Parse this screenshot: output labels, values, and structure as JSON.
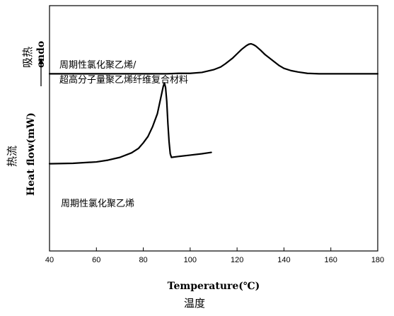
{
  "chart_data": {
    "type": "line",
    "xlabel": "Temperature(℃)",
    "xlabel_cn": "温度",
    "ylabel": "Heat flow(mW)",
    "ylabel_cn": "热流",
    "endo_label_cn": "吸热",
    "endo_label": "endo",
    "xlim": [
      40,
      180
    ],
    "xticks": [
      40,
      60,
      80,
      100,
      120,
      140,
      160,
      180
    ],
    "y_ticks_shown": false,
    "grid": false,
    "series": [
      {
        "name": "周期性氯化聚乙烯/超高分子量聚乙烯纤维复合材料",
        "label_lines": [
          "周期性氯化聚乙烯/",
          "超高分子量聚乙烯纤维复合材料"
        ],
        "color": "#000000",
        "x": [
          40,
          80,
          90,
          95,
          100,
          105,
          110,
          113,
          115,
          118,
          120,
          122,
          124,
          125,
          126,
          127,
          128,
          130,
          132,
          135,
          138,
          140,
          143,
          146,
          150,
          155,
          160,
          170,
          180
        ],
        "y": [
          0.0,
          0.0,
          0.0,
          0.05,
          0.05,
          0.15,
          0.45,
          0.75,
          1.1,
          1.7,
          2.2,
          2.7,
          3.1,
          3.25,
          3.3,
          3.2,
          3.05,
          2.6,
          2.1,
          1.5,
          0.9,
          0.6,
          0.35,
          0.2,
          0.05,
          0.0,
          0.0,
          0.0,
          0.0
        ]
      },
      {
        "name": "周期性氯化聚乙烯",
        "label_lines": [
          "周期性氯化聚乙烯"
        ],
        "color": "#000000",
        "x": [
          40,
          50,
          60,
          65,
          70,
          75,
          78,
          80,
          82,
          84,
          86,
          87,
          88,
          88.5,
          89,
          89.5,
          90,
          90.5,
          91,
          91.5,
          92,
          95,
          100,
          105,
          109
        ],
        "y": [
          -9.9,
          -9.85,
          -9.7,
          -9.5,
          -9.2,
          -8.7,
          -8.2,
          -7.6,
          -6.9,
          -5.8,
          -4.4,
          -3.2,
          -2.0,
          -1.4,
          -1.0,
          -1.5,
          -3.0,
          -5.5,
          -7.5,
          -8.8,
          -9.2,
          -9.1,
          -8.95,
          -8.8,
          -8.65
        ]
      }
    ],
    "ylim": [
      -19.5,
      7.5
    ]
  }
}
